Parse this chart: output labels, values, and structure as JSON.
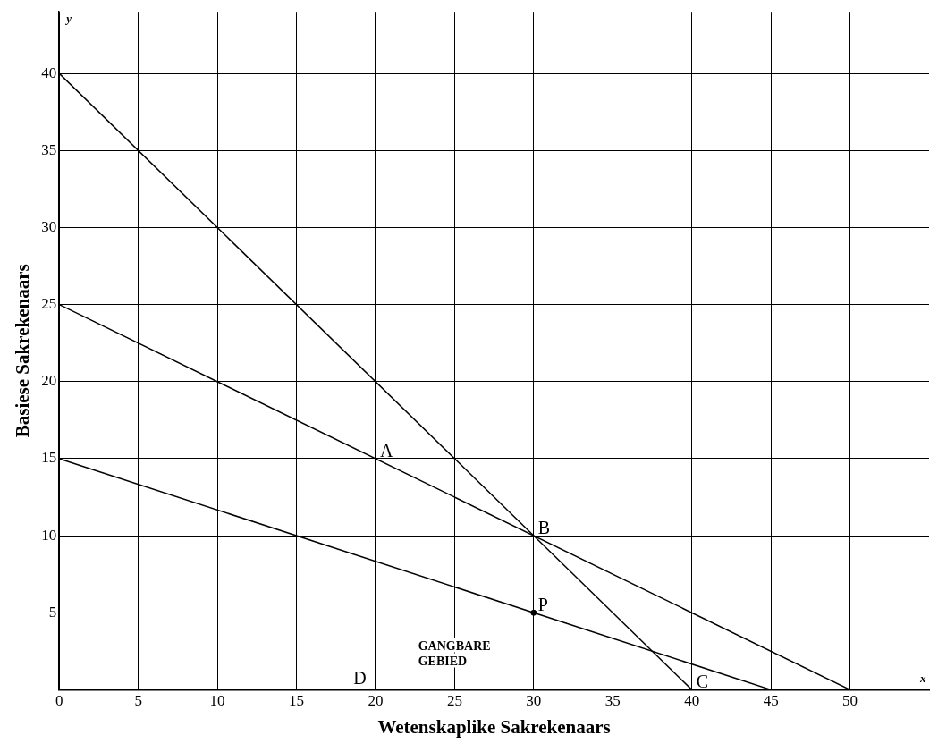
{
  "chart_data": {
    "type": "line",
    "xlabel": "Wetenskaplike Sakrekenaars",
    "ylabel": "Basiese Sakrekenaars",
    "series": [
      {
        "color": "#000000",
        "x": [
          0,
          40
        ],
        "values": [
          40,
          0
        ]
      },
      {
        "color": "#000000",
        "x": [
          0,
          50
        ],
        "values": [
          25,
          0
        ]
      },
      {
        "color": "#000000",
        "x": [
          0,
          45
        ],
        "values": [
          15,
          0
        ]
      },
      {
        "type": "scatter",
        "color": "#000000",
        "x": [
          30
        ],
        "values": [
          5
        ],
        "marker": "circle"
      }
    ],
    "xlim": [
      0,
      55
    ],
    "ylim": [
      0,
      44
    ],
    "xticks": [
      0,
      5,
      10,
      15,
      20,
      25,
      30,
      35,
      40,
      45,
      50
    ],
    "yticks": [
      5,
      10,
      15,
      20,
      25,
      30,
      35,
      40
    ],
    "grid": true,
    "legend": false,
    "marker": "none",
    "line_style": "solid",
    "annotations": [
      {
        "text": "A",
        "x": 20,
        "y": 15
      },
      {
        "text": "B",
        "x": 30,
        "y": 10
      },
      {
        "text": "C",
        "x": 40,
        "y": 0
      },
      {
        "text": "P",
        "x": 30,
        "y": 5
      },
      "D",
      "GANGBARE GEBIED",
      "y",
      "x"
    ]
  }
}
